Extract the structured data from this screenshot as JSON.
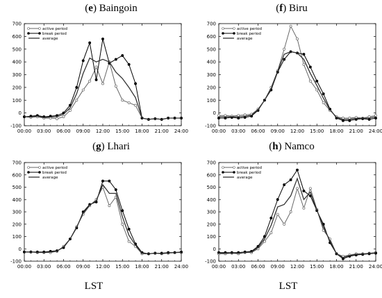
{
  "chart_data": [
    {
      "panel_id": "e",
      "panel_name": "Baingoin",
      "type": "line",
      "xlabel": "",
      "ylim": [
        -100,
        700
      ],
      "yticks": [
        -100,
        0,
        100,
        200,
        300,
        400,
        500,
        600,
        700
      ],
      "xticks": [
        "00:00",
        "03:00",
        "06:00",
        "09:00",
        "12:00",
        "15:00",
        "18:00",
        "21:00",
        "24:00"
      ],
      "legend_position": "top-left",
      "grid": false,
      "x_hours": [
        0,
        1,
        2,
        3,
        4,
        5,
        6,
        7,
        8,
        9,
        10,
        11,
        12,
        13,
        14,
        15,
        16,
        17,
        18,
        19,
        20,
        21,
        22,
        23,
        24
      ],
      "series": [
        {
          "name": "active period",
          "marker": "open-circle",
          "values": [
            -30,
            -35,
            -30,
            -40,
            -40,
            -45,
            -30,
            20,
            100,
            180,
            250,
            360,
            230,
            400,
            210,
            100,
            80,
            60,
            -40,
            -50,
            -45,
            -50,
            -40,
            -40,
            -40
          ]
        },
        {
          "name": "break period",
          "marker": "filled-circle",
          "values": [
            -30,
            -25,
            -20,
            -30,
            -25,
            -20,
            0,
            60,
            200,
            410,
            550,
            260,
            580,
            390,
            420,
            450,
            380,
            230,
            -40,
            -50,
            -45,
            -50,
            -40,
            -40,
            -40
          ]
        },
        {
          "name": "average",
          "marker": "none",
          "values": [
            -30,
            -30,
            -25,
            -35,
            -32,
            -30,
            -10,
            40,
            150,
            310,
            430,
            400,
            420,
            400,
            320,
            270,
            200,
            120,
            -40,
            -50,
            -45,
            -50,
            -40,
            -40,
            -40
          ]
        }
      ]
    },
    {
      "panel_id": "f",
      "panel_name": "Biru",
      "type": "line",
      "xlabel": "",
      "ylim": [
        -100,
        700
      ],
      "yticks": [
        -100,
        0,
        100,
        200,
        300,
        400,
        500,
        600,
        700
      ],
      "xticks": [
        "00:00",
        "03:00",
        "06:00",
        "09:00",
        "12:00",
        "15:00",
        "18:00",
        "21:00",
        "24:00"
      ],
      "legend_position": "top-left",
      "grid": false,
      "x_hours": [
        0,
        1,
        2,
        3,
        4,
        5,
        6,
        7,
        8,
        9,
        10,
        11,
        12,
        13,
        14,
        15,
        16,
        17,
        18,
        19,
        20,
        21,
        22,
        23,
        24
      ],
      "series": [
        {
          "name": "active period",
          "marker": "open-circle",
          "values": [
            -20,
            -20,
            -25,
            -20,
            -15,
            -10,
            30,
            100,
            200,
            330,
            500,
            680,
            580,
            380,
            250,
            180,
            80,
            20,
            -30,
            -40,
            -40,
            -35,
            -40,
            -30,
            -20
          ]
        },
        {
          "name": "break period",
          "marker": "filled-circle",
          "values": [
            -40,
            -40,
            -35,
            -40,
            -35,
            -25,
            20,
            100,
            180,
            320,
            420,
            480,
            470,
            460,
            360,
            250,
            150,
            30,
            -40,
            -60,
            -60,
            -50,
            -45,
            -50,
            -40
          ]
        },
        {
          "name": "average",
          "marker": "none",
          "values": [
            -30,
            -30,
            -30,
            -30,
            -25,
            -18,
            25,
            100,
            190,
            325,
            460,
            480,
            470,
            420,
            310,
            215,
            115,
            25,
            -35,
            -50,
            -50,
            -42,
            -42,
            -40,
            -30
          ]
        }
      ]
    },
    {
      "panel_id": "g",
      "panel_name": "Lhari",
      "type": "line",
      "xlabel": "LST",
      "ylim": [
        -100,
        700
      ],
      "yticks": [
        -100,
        0,
        100,
        200,
        300,
        400,
        500,
        600,
        700
      ],
      "xticks": [
        "00:00",
        "03:00",
        "06:00",
        "09:00",
        "12:00",
        "15:00",
        "18:00",
        "21:00",
        "24:00"
      ],
      "legend_position": "top-left",
      "grid": false,
      "x_hours": [
        0,
        1,
        2,
        3,
        4,
        5,
        6,
        7,
        8,
        9,
        10,
        11,
        12,
        13,
        14,
        15,
        16,
        17,
        18,
        19,
        20,
        21,
        22,
        23,
        24
      ],
      "series": [
        {
          "name": "active period",
          "marker": "open-circle",
          "values": [
            -25,
            -25,
            -30,
            -30,
            -30,
            -20,
            20,
            80,
            180,
            280,
            350,
            400,
            500,
            350,
            420,
            200,
            60,
            20,
            -40,
            -40,
            -35,
            -40,
            -35,
            -30,
            -30
          ]
        },
        {
          "name": "break period",
          "marker": "filled-circle",
          "values": [
            -25,
            -25,
            -25,
            -25,
            -20,
            -15,
            10,
            80,
            170,
            300,
            360,
            380,
            550,
            550,
            480,
            310,
            160,
            40,
            -30,
            -40,
            -35,
            -35,
            -30,
            -30,
            -25
          ]
        },
        {
          "name": "average",
          "marker": "none",
          "values": [
            -25,
            -25,
            -28,
            -28,
            -25,
            -18,
            15,
            80,
            175,
            290,
            355,
            390,
            520,
            450,
            450,
            260,
            110,
            30,
            -35,
            -40,
            -35,
            -38,
            -32,
            -30,
            -28
          ]
        }
      ]
    },
    {
      "panel_id": "h",
      "panel_name": "Namco",
      "type": "line",
      "xlabel": "LST",
      "ylim": [
        -100,
        700
      ],
      "yticks": [
        -100,
        0,
        100,
        200,
        300,
        400,
        500,
        600,
        700
      ],
      "xticks": [
        "00:00",
        "03:00",
        "06:00",
        "09:00",
        "12:00",
        "15:00",
        "18:00",
        "21:00",
        "24:00"
      ],
      "legend_position": "top-left",
      "grid": false,
      "x_hours": [
        0,
        1,
        2,
        3,
        4,
        5,
        6,
        7,
        8,
        9,
        10,
        11,
        12,
        13,
        14,
        15,
        16,
        17,
        18,
        19,
        20,
        21,
        22,
        23,
        24
      ],
      "series": [
        {
          "name": "active period",
          "marker": "open-circle",
          "values": [
            -40,
            -40,
            -35,
            -40,
            -30,
            -30,
            0,
            60,
            130,
            280,
            200,
            300,
            490,
            330,
            490,
            320,
            150,
            80,
            -40,
            -60,
            -50,
            -40,
            -40,
            -35,
            -30
          ]
        },
        {
          "name": "break period",
          "marker": "filled-circle",
          "values": [
            -30,
            -30,
            -30,
            -30,
            -25,
            -20,
            20,
            100,
            250,
            400,
            520,
            560,
            640,
            470,
            430,
            310,
            200,
            50,
            -40,
            -80,
            -60,
            -50,
            -45,
            -40,
            -35
          ]
        },
        {
          "name": "average",
          "marker": "none",
          "values": [
            -35,
            -35,
            -32,
            -35,
            -28,
            -25,
            10,
            80,
            190,
            340,
            360,
            430,
            570,
            400,
            460,
            315,
            175,
            65,
            -40,
            -70,
            -55,
            -45,
            -42,
            -38,
            -32
          ]
        }
      ]
    }
  ]
}
